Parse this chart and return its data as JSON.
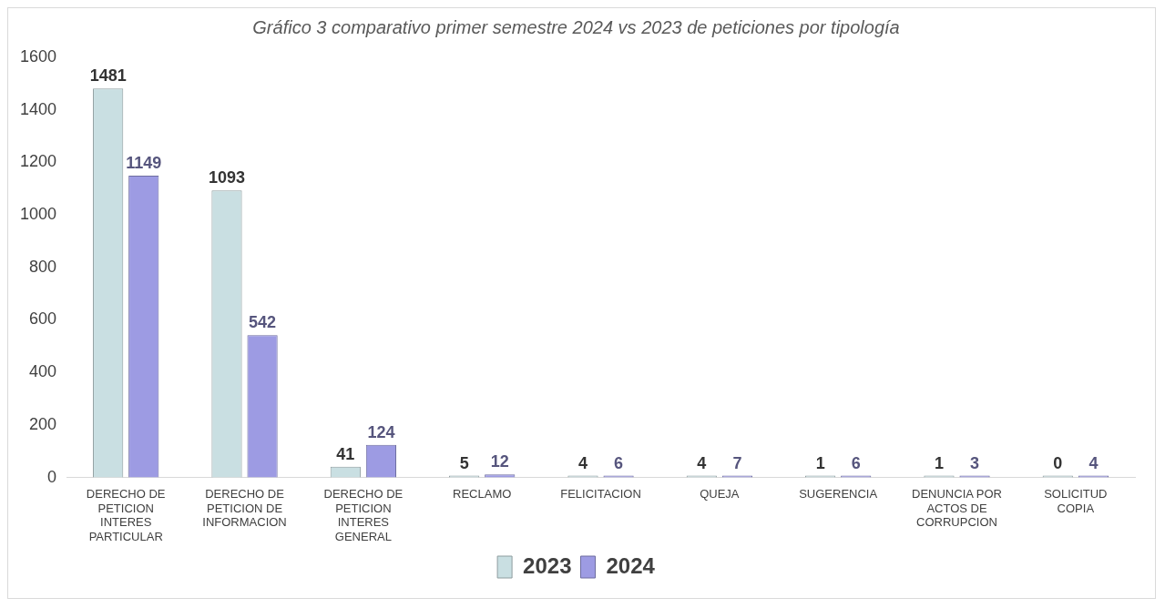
{
  "chart_data": {
    "type": "bar",
    "title": "Gráfico 3 comparativo primer semestre 2024 vs 2023 de peticiones por tipología",
    "categories": [
      "DERECHO DE PETICION INTERES PARTICULAR",
      "DERECHO DE PETICION DE INFORMACION",
      "DERECHO DE PETICION INTERES GENERAL",
      "RECLAMO",
      "FELICITACION",
      "QUEJA",
      "SUGERENCIA",
      "DENUNCIA POR ACTOS DE CORRUPCION",
      "SOLICITUD COPIA"
    ],
    "series": [
      {
        "name": "2023",
        "color": "#c9dfe2",
        "values": [
          1481,
          1093,
          41,
          5,
          4,
          4,
          1,
          1,
          0
        ]
      },
      {
        "name": "2024",
        "color": "#9d9be3",
        "values": [
          1149,
          542,
          124,
          12,
          6,
          7,
          6,
          3,
          4
        ]
      }
    ],
    "ylim": [
      0,
      1600
    ],
    "yticks": [
      0,
      200,
      400,
      600,
      800,
      1000,
      1200,
      1400,
      1600
    ],
    "grid": false,
    "legend": "bottom",
    "data_labels": true
  }
}
